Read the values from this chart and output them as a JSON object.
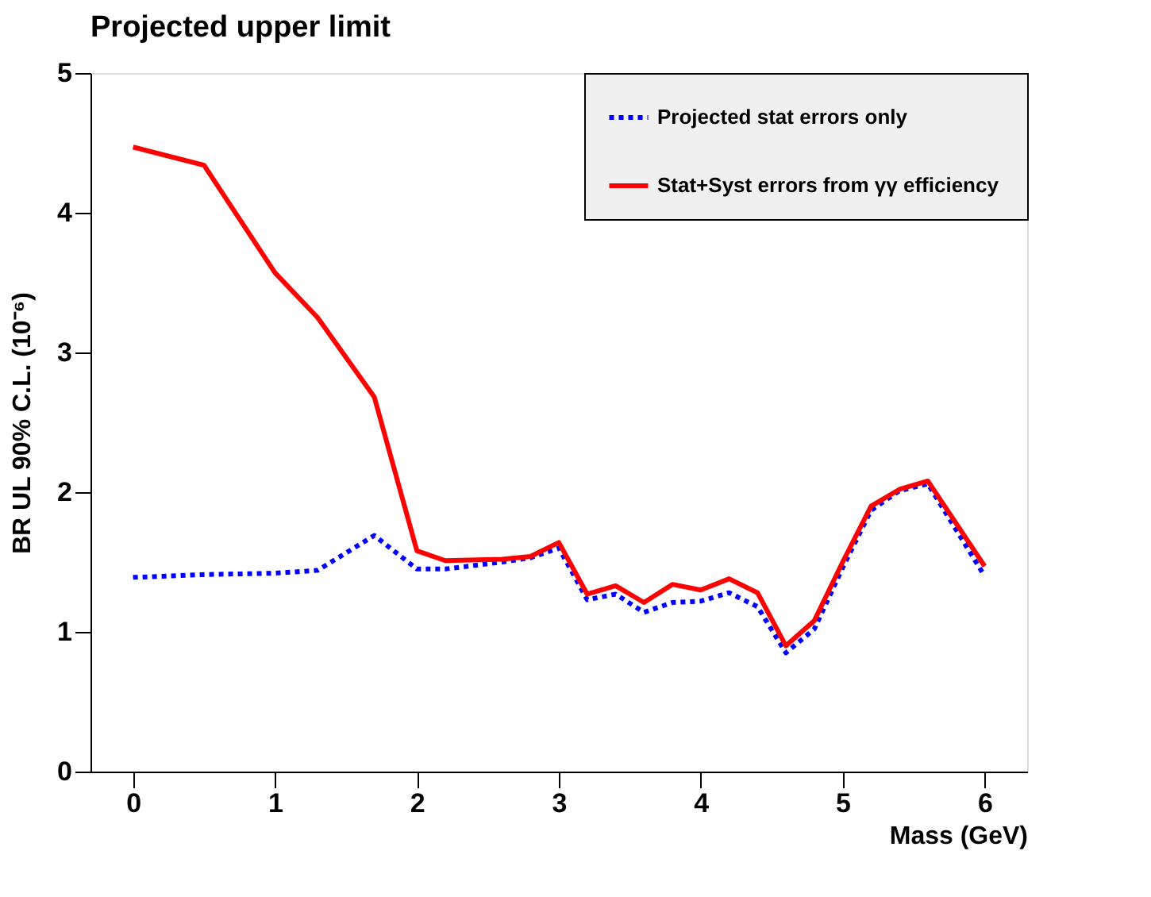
{
  "chart_data": {
    "type": "line",
    "title": "Projected upper limit",
    "xlabel": "Mass (GeV)",
    "ylabel": "BR UL   90% C.L. (10⁻⁶)",
    "x": [
      0,
      0.5,
      1,
      1.3,
      1.7,
      2,
      2.2,
      2.6,
      2.8,
      3,
      3.2,
      3.4,
      3.6,
      3.8,
      4,
      4.2,
      4.4,
      4.6,
      4.8,
      5,
      5.2,
      5.4,
      5.6,
      6
    ],
    "series": [
      {
        "name": "Projected stat errors only",
        "color": "#0000ff",
        "line_style": "dotted",
        "values": [
          1.39,
          1.41,
          1.42,
          1.44,
          1.69,
          1.45,
          1.45,
          1.5,
          1.53,
          1.6,
          1.23,
          1.27,
          1.14,
          1.21,
          1.22,
          1.28,
          1.18,
          0.85,
          1.02,
          1.46,
          1.87,
          2.01,
          2.06,
          1.4
        ]
      },
      {
        "name": "Stat+Syst errors from  γγ efficiency",
        "color": "#ff0000",
        "line_style": "solid",
        "values": [
          4.47,
          4.34,
          3.57,
          3.25,
          2.68,
          1.58,
          1.51,
          1.52,
          1.54,
          1.64,
          1.27,
          1.33,
          1.21,
          1.34,
          1.3,
          1.38,
          1.28,
          0.9,
          1.08,
          1.5,
          1.9,
          2.02,
          2.08,
          1.47
        ]
      }
    ],
    "xlim": [
      -0.3,
      6.3
    ],
    "xticks": [
      0,
      1,
      2,
      3,
      4,
      5,
      6
    ],
    "ylim": [
      0,
      5
    ],
    "yticks": [
      0,
      1,
      2,
      3,
      4,
      5
    ],
    "grid": false,
    "legend": "top right",
    "marker": "none"
  }
}
